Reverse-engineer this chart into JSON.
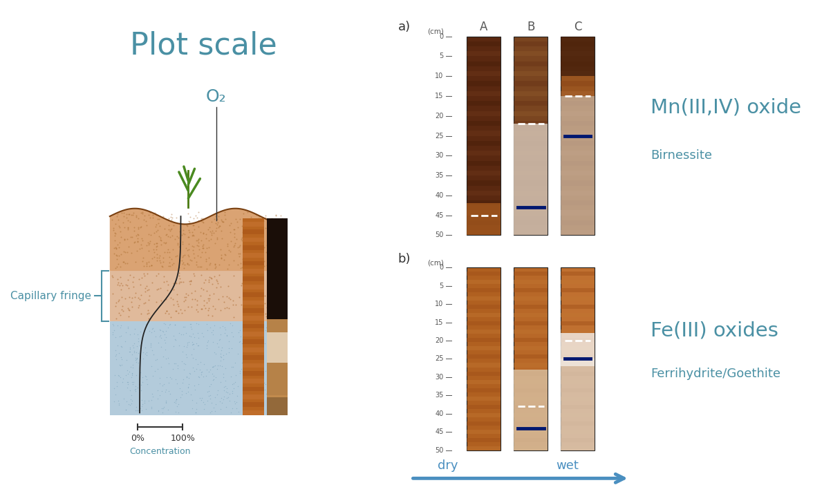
{
  "title": "Plot scale",
  "title_color": "#4a90a4",
  "title_fontsize": 32,
  "o2_label": "O₂",
  "o2_color": "#4a90a4",
  "capillary_label": "Capillary fringe",
  "capillary_color": "#4a90a4",
  "conc_label": "Concentration",
  "conc_color": "#4a90a4",
  "zero_pct": "0%",
  "hundred_pct": "100%",
  "panel_a_label": "a)",
  "panel_b_label": "b)",
  "col_labels": [
    "A",
    "B",
    "C"
  ],
  "mn_oxide_title": "Mn(III,IV) oxide",
  "mn_oxide_subtitle": "Birnessite",
  "fe_oxide_title": "Fe(III) oxides",
  "fe_oxide_subtitle": "Ferrihydrite/Goethite",
  "oxide_title_color": "#4a90a4",
  "oxide_subtitle_color": "#4a90a4",
  "dry_label": "dry",
  "wet_label": "wet",
  "arrow_color": "#4a8fc0",
  "bg_color": "#ffffff",
  "water_color": "#8aafc8",
  "curve_color": "#222222",
  "label_color": "#4a90a4"
}
